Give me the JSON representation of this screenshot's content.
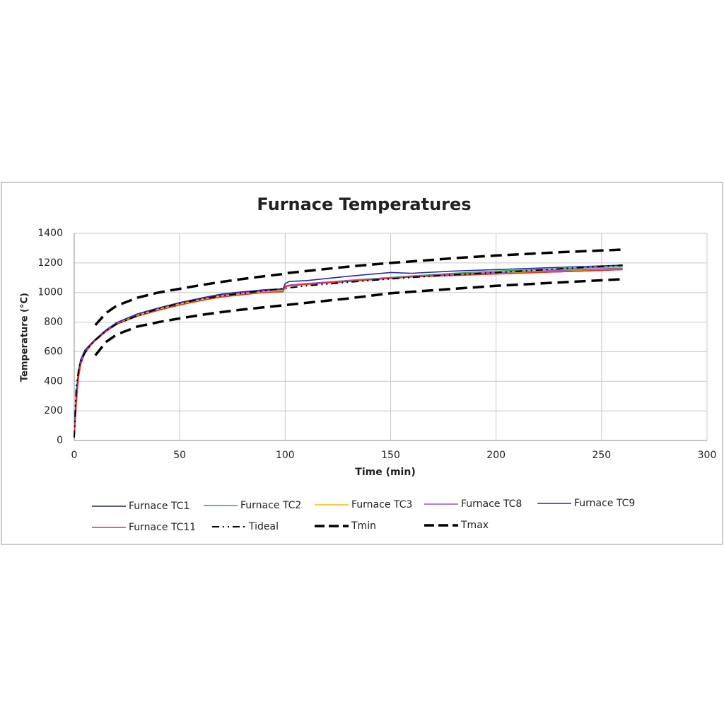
{
  "chart_data": {
    "type": "line",
    "title": "Furnace Temperatures",
    "x_label": "Time (min)",
    "y_label": "Temperature (°C)",
    "xlim": [
      0,
      300
    ],
    "ylim": [
      0,
      1400
    ],
    "xticks": [
      0,
      50,
      100,
      150,
      200,
      250,
      300
    ],
    "yticks": [
      0,
      200,
      400,
      600,
      800,
      1000,
      1200,
      1400
    ],
    "grid": true,
    "legend": "bottom",
    "x": [
      0,
      1,
      2,
      3,
      5,
      8,
      10,
      15,
      20,
      30,
      40,
      50,
      60,
      70,
      80,
      90,
      99,
      100,
      102,
      110,
      130,
      150,
      160,
      180,
      200,
      230,
      260
    ],
    "series": [
      {
        "name": "Furnace TC1",
        "color": "#1f2a44",
        "style": "solid",
        "values": [
          20,
          300,
          450,
          530,
          600,
          650,
          680,
          740,
          790,
          850,
          890,
          925,
          955,
          985,
          1000,
          1015,
          1020,
          1040,
          1050,
          1060,
          1080,
          1100,
          1110,
          1120,
          1130,
          1140,
          1155
        ]
      },
      {
        "name": "Furnace TC2",
        "color": "#22aa55",
        "style": "solid",
        "values": [
          20,
          290,
          440,
          525,
          598,
          650,
          680,
          742,
          792,
          852,
          892,
          928,
          958,
          982,
          998,
          1012,
          1018,
          1040,
          1048,
          1058,
          1082,
          1102,
          1112,
          1130,
          1145,
          1160,
          1175
        ]
      },
      {
        "name": "Furnace TC3",
        "color": "#f0c000",
        "style": "solid",
        "values": [
          20,
          270,
          430,
          515,
          592,
          645,
          676,
          738,
          788,
          848,
          888,
          922,
          952,
          976,
          992,
          1006,
          1012,
          1038,
          1045,
          1055,
          1078,
          1098,
          1106,
          1118,
          1128,
          1145,
          1160
        ]
      },
      {
        "name": "Furnace TC8",
        "color": "#9b4fc8",
        "style": "solid",
        "values": [
          20,
          310,
          455,
          535,
          603,
          652,
          682,
          745,
          795,
          855,
          895,
          930,
          960,
          985,
          1000,
          1012,
          1020,
          1042,
          1050,
          1060,
          1080,
          1100,
          1108,
          1125,
          1135,
          1150,
          1165
        ]
      },
      {
        "name": "Furnace TC9",
        "color": "#2a2aa0",
        "style": "solid",
        "values": [
          20,
          320,
          470,
          545,
          610,
          655,
          684,
          746,
          796,
          856,
          896,
          932,
          962,
          990,
          1005,
          1018,
          1025,
          1060,
          1075,
          1080,
          1110,
          1135,
          1130,
          1145,
          1155,
          1170,
          1185
        ]
      },
      {
        "name": "Furnace TC11",
        "color": "#e8302a",
        "style": "solid",
        "values": [
          20,
          250,
          420,
          510,
          590,
          645,
          675,
          735,
          785,
          840,
          880,
          915,
          945,
          970,
          985,
          1000,
          1005,
          1040,
          1045,
          1055,
          1075,
          1095,
          1105,
          1115,
          1125,
          1140,
          1155
        ]
      },
      {
        "name": "Tideal",
        "color": "#000000",
        "style": "dashdot",
        "values": [
          20,
          370,
          470,
          530,
          590,
          650,
          678,
          740,
          785,
          845,
          890,
          925,
          955,
          978,
          995,
          1012,
          1027,
          1029,
          1032,
          1045,
          1070,
          1092,
          1102,
          1120,
          1135,
          1160,
          1185
        ]
      },
      {
        "name": "Tmin",
        "color": "#000000",
        "style": "dash",
        "values": [
          null,
          null,
          null,
          null,
          null,
          null,
          575,
          665,
          715,
          770,
          800,
          825,
          848,
          868,
          885,
          900,
          913,
          915,
          918,
          930,
          960,
          995,
          1005,
          1025,
          1045,
          1068,
          1090
        ]
      },
      {
        "name": "Tmax",
        "color": "#000000",
        "style": "dash",
        "values": [
          null,
          null,
          null,
          null,
          null,
          null,
          780,
          860,
          910,
          965,
          1000,
          1025,
          1050,
          1072,
          1092,
          1110,
          1125,
          1130,
          1133,
          1145,
          1175,
          1200,
          1210,
          1232,
          1250,
          1272,
          1290
        ]
      }
    ]
  }
}
